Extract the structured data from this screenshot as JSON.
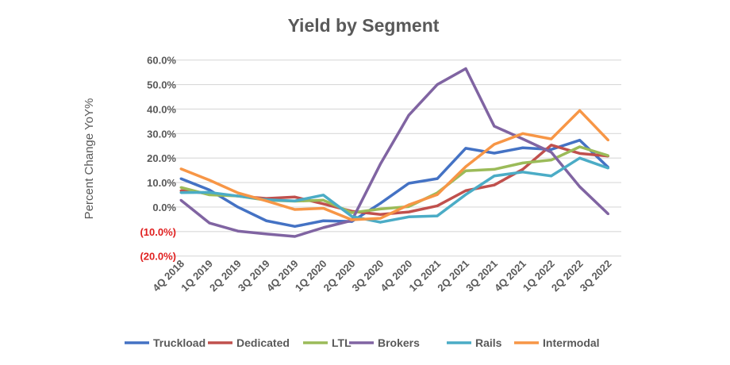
{
  "chart_data": {
    "type": "line",
    "title": "Yield by Segment",
    "xlabel": "",
    "ylabel": "Percent Change YoY%",
    "ylim": [
      -20,
      60
    ],
    "yticks": [
      60,
      50,
      40,
      30,
      20,
      10,
      0,
      -10,
      -20
    ],
    "ytick_labels": [
      "60.0%",
      "50.0%",
      "40.0%",
      "30.0%",
      "20.0%",
      "10.0%",
      "0.0%",
      "(10.0%)",
      "(20.0%)"
    ],
    "negative_tick_color": "#e02020",
    "grid": true,
    "legend_placement": "bottom",
    "categories": [
      "4Q 2018",
      "1Q 2019",
      "2Q 2019",
      "3Q 2019",
      "4Q 2019",
      "1Q 2020",
      "2Q 2020",
      "3Q 2020",
      "4Q 2020",
      "1Q 2021",
      "2Q 2021",
      "3Q 2021",
      "4Q 2021",
      "1Q 2022",
      "2Q 2022",
      "3Q 2022"
    ],
    "series": [
      {
        "name": "Truckload",
        "color": "#4472C4",
        "values": [
          11.6,
          7,
          0,
          -5.6,
          -7.9,
          -5.6,
          -5.9,
          1.5,
          9.7,
          11.6,
          24,
          22,
          24.2,
          23.5,
          27.3,
          16.2
        ]
      },
      {
        "name": "Dedicated",
        "color": "#C0504D",
        "values": [
          6.7,
          5.5,
          4.5,
          3.5,
          4.1,
          1.3,
          -1.7,
          -3,
          -2,
          0.5,
          6.7,
          9,
          15.4,
          25.3,
          21.9,
          20.8
        ]
      },
      {
        "name": "LTL",
        "color": "#9BBB59",
        "values": [
          8,
          5,
          4.5,
          2.8,
          2.4,
          2.8,
          -2.3,
          -0.8,
          0.2,
          5.8,
          14.8,
          15.4,
          18,
          19.2,
          24.6,
          21
        ]
      },
      {
        "name": "Brokers",
        "color": "#8064A2",
        "values": [
          2.8,
          -6.5,
          -9.8,
          -11,
          -12,
          -8.4,
          -5.5,
          17.5,
          37.5,
          50,
          56.5,
          33,
          27.8,
          22.4,
          8.3,
          -2.8
        ]
      },
      {
        "name": "Rails",
        "color": "#4BACC6",
        "values": [
          5.9,
          6,
          4.5,
          3,
          2.5,
          4.9,
          -3.8,
          -6.2,
          -4,
          -3.6,
          5.1,
          12.7,
          14.3,
          12.7,
          20,
          15.9
        ]
      },
      {
        "name": "Intermodal",
        "color": "#F79646",
        "values": [
          15.6,
          11,
          5.8,
          2.5,
          -1,
          -0.5,
          -5.2,
          -4.6,
          0.9,
          5.1,
          16.5,
          25.6,
          30,
          27.8,
          39.4,
          27.3
        ]
      }
    ]
  }
}
